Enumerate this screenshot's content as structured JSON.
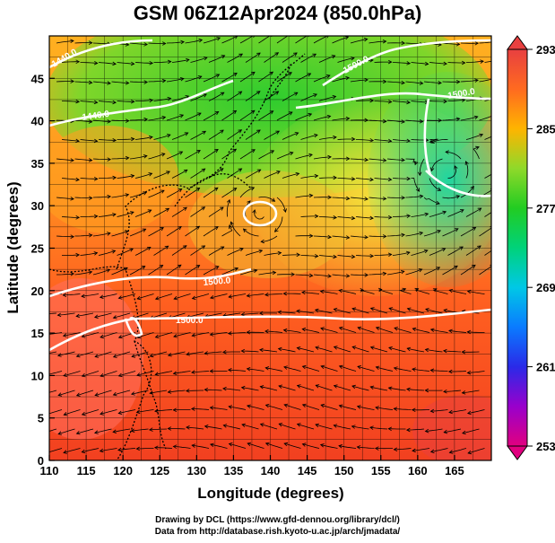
{
  "title": "GSM 06Z12Apr2024 (850.0hPa)",
  "x_axis": {
    "label": "Longitude (degrees)",
    "ticks": [
      "110",
      "115",
      "120",
      "125",
      "130",
      "135",
      "140",
      "145",
      "150",
      "155",
      "160",
      "165"
    ],
    "range": [
      110,
      170
    ]
  },
  "y_axis": {
    "label": "Latitude  (degrees)",
    "ticks": [
      "0",
      "5",
      "10",
      "15",
      "20",
      "25",
      "30",
      "35",
      "40",
      "45"
    ],
    "range": [
      0,
      50
    ]
  },
  "colorbar": {
    "labels": [
      "293",
      "285",
      "277",
      "269",
      "261",
      "253"
    ],
    "min": 253,
    "max": 293,
    "colors": [
      "#e1007f",
      "#9900cc",
      "#2a2ae8",
      "#0a7bff",
      "#00c8e6",
      "#00d27a",
      "#22cc22",
      "#8fd92a",
      "#e6e62a",
      "#ffb400",
      "#ff6a20",
      "#e84040"
    ]
  },
  "contour_labels": [
    "1440.0",
    "1500.0",
    "1500.0",
    "1500.0",
    "1500.0",
    "1440.0"
  ],
  "credits": {
    "line1": "Drawing by DCL (https://www.gfd-dennou.org/library/dcl/)",
    "line2": "Data from http://database.rish.kyoto-u.ac.jp/arch/jmadata/"
  }
}
